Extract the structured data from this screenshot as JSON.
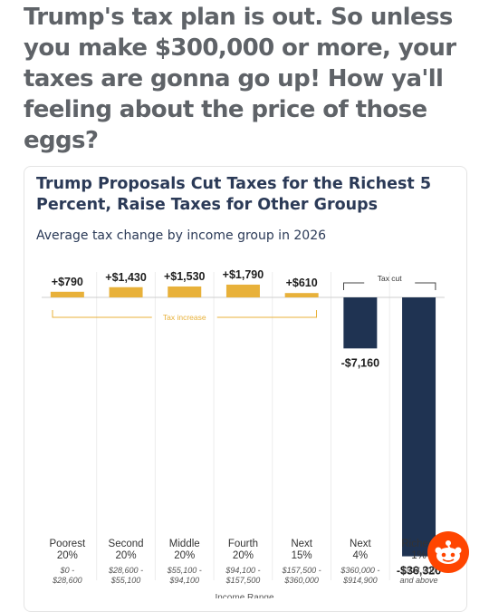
{
  "post": {
    "headline": "Trump's tax plan is out. So unless you make $300,000 or more, your taxes are gonna go up! How ya'll feeling about the price of those eggs?"
  },
  "chart_data": {
    "type": "bar",
    "title": "Trump Proposals Cut Taxes for the Richest 5 Percent, Raise Taxes for Other Groups",
    "subtitle": "Average tax change by income group in 2026",
    "categories": [
      "Poorest 20%",
      "Second 20%",
      "Middle 20%",
      "Fourth 20%",
      "Next 15%",
      "Next 4%",
      "Richest 1%"
    ],
    "category_lines": [
      [
        "Poorest",
        "20%"
      ],
      [
        "Second",
        "20%"
      ],
      [
        "Middle",
        "20%"
      ],
      [
        "Fourth",
        "20%"
      ],
      [
        "Next",
        "15%"
      ],
      [
        "Next",
        "4%"
      ],
      [
        "Richest",
        "1%"
      ]
    ],
    "ranges": [
      [
        "$0 -",
        "$28,600"
      ],
      [
        "$28,600 -",
        "$55,100"
      ],
      [
        "$55,100 -",
        "$94,100"
      ],
      [
        "$94,100 -",
        "$157,500"
      ],
      [
        "$157,500 -",
        "$360,000"
      ],
      [
        "$360,000 -",
        "$914,900"
      ],
      [
        "$914,900",
        "and above"
      ]
    ],
    "values": [
      790,
      1430,
      1530,
      1790,
      610,
      -7160,
      -36320
    ],
    "value_labels": [
      "+$790",
      "+$1,430",
      "+$1,530",
      "+$1,790",
      "+$610",
      "-$7,160",
      "-$36,320"
    ],
    "annotations": {
      "increase": "Tax increase",
      "cut": "Tax cut"
    },
    "xlabel": "Income Range",
    "ylim": [
      -37500,
      1800
    ],
    "colors": {
      "increase": "#e8b13a",
      "cut": "#1f3352",
      "bracket": "#e8b13a"
    },
    "grid": "vertical separators"
  },
  "icons": {
    "badge": "reddit-snoo-icon"
  }
}
